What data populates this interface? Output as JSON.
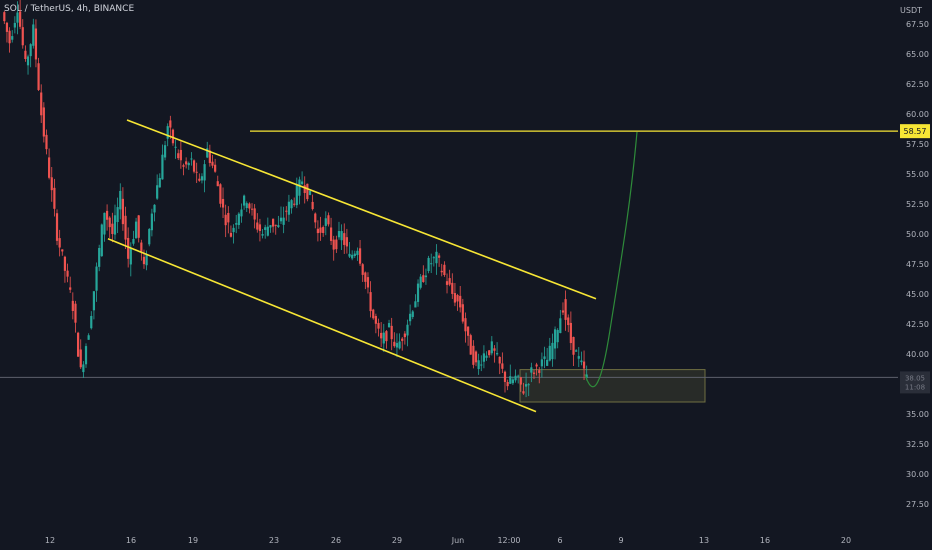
{
  "header": {
    "title": "SOL / TetherUS, 4h, BINANCE",
    "unit": "USDT"
  },
  "colors": {
    "background": "#131722",
    "up": "#26a69a",
    "down": "#ef5350",
    "trendline": "#f7e635",
    "projection": "#2e8b3a",
    "price_line": "#5d606b",
    "zone_fill": "#3a3d2e",
    "zone_stroke": "#6f6f42"
  },
  "chart_data": {
    "type": "candlestick",
    "x_ticks": [
      "12",
      "16",
      "19",
      "23",
      "26",
      "29",
      "Jun",
      "12:00",
      "6",
      "9",
      "13",
      "16",
      "20"
    ],
    "y_ticks": [
      "67.50",
      "65.00",
      "62.50",
      "60.00",
      "57.50",
      "55.00",
      "52.50",
      "50.00",
      "47.50",
      "45.00",
      "42.50",
      "40.00",
      "37.50",
      "35.00",
      "32.50",
      "30.00",
      "27.50"
    ],
    "ylim": [
      25.5,
      69.5
    ],
    "resistance_level": {
      "value": 58.57,
      "label": "58.57"
    },
    "current_price": {
      "value": 38.05,
      "label": "38.05",
      "countdown": "11:08"
    },
    "support_zone": {
      "low": 36.0,
      "high": 38.7
    },
    "channel": {
      "upper": [
        {
          "x": "16",
          "y": 59.5
        },
        {
          "x": "6",
          "y": 44.6
        }
      ],
      "lower": [
        {
          "x": "15",
          "y": 49.6
        },
        {
          "x": "12:00",
          "y": 35.2
        }
      ]
    },
    "projection": [
      {
        "t": "6",
        "y": 38.0
      },
      {
        "t": "6",
        "y": 37.0
      },
      {
        "t": "9",
        "y": 45.0
      },
      {
        "t": "9",
        "y": 58.5
      }
    ],
    "series": [
      {
        "name": "SOL/USDT",
        "close_path": [
          68.5,
          66.0,
          69.0,
          64.0,
          67.0,
          60.0,
          55.0,
          50.0,
          47.0,
          44.0,
          38.5,
          42.0,
          47.0,
          52.0,
          50.0,
          53.0,
          48.0,
          51.0,
          47.0,
          52.0,
          55.0,
          59.0,
          57.0,
          55.5,
          56.0,
          54.0,
          57.0,
          55.0,
          52.0,
          50.0,
          52.0,
          53.0,
          51.0,
          50.0,
          51.0,
          50.5,
          52.0,
          53.0,
          54.5,
          53.0,
          50.0,
          51.0,
          49.0,
          50.0,
          48.0,
          49.0,
          46.0,
          43.0,
          41.0,
          42.0,
          40.5,
          42.0,
          44.0,
          46.0,
          47.5,
          48.0,
          46.5,
          45.0,
          44.0,
          41.0,
          39.0,
          40.0,
          40.5,
          39.0,
          37.5,
          38.0,
          37.0,
          38.5,
          39.0,
          39.5,
          41.5,
          44.0,
          41.0,
          39.5,
          38.0
        ]
      }
    ]
  }
}
